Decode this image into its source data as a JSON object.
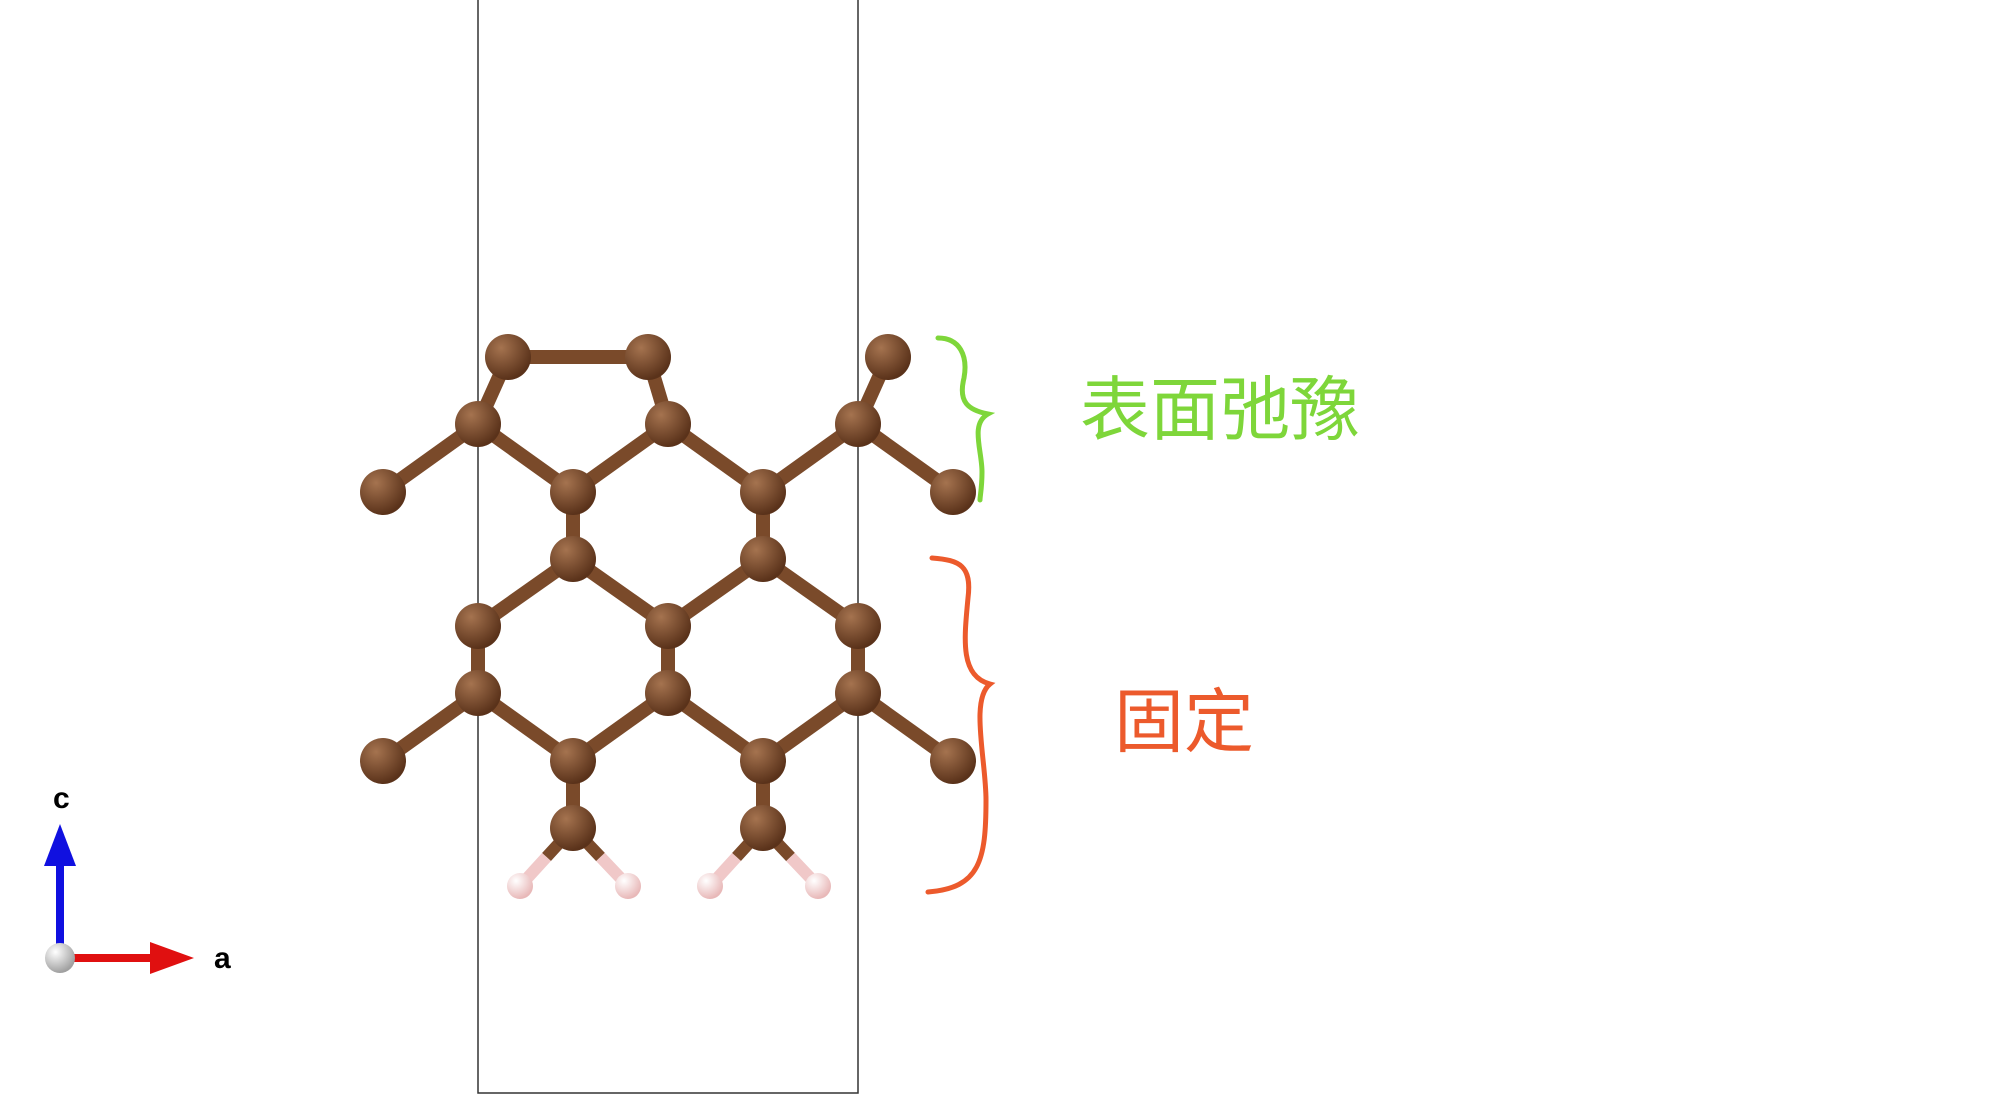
{
  "structure": {
    "atoms": [
      {
        "id": "c1",
        "element": "C"
      },
      {
        "id": "c2",
        "element": "C"
      },
      {
        "id": "c3",
        "element": "C"
      },
      {
        "id": "c4",
        "element": "C"
      },
      {
        "id": "c5",
        "element": "C"
      },
      {
        "id": "c6",
        "element": "C"
      },
      {
        "id": "c7",
        "element": "C"
      },
      {
        "id": "c8",
        "element": "C"
      },
      {
        "id": "c9",
        "element": "C"
      },
      {
        "id": "c10",
        "element": "C"
      },
      {
        "id": "c11",
        "element": "C"
      },
      {
        "id": "c12",
        "element": "C"
      },
      {
        "id": "c13",
        "element": "C"
      },
      {
        "id": "c14",
        "element": "C"
      },
      {
        "id": "c15",
        "element": "C"
      },
      {
        "id": "c16",
        "element": "C"
      },
      {
        "id": "c17",
        "element": "C"
      },
      {
        "id": "c18",
        "element": "C"
      },
      {
        "id": "c19",
        "element": "C"
      },
      {
        "id": "c20",
        "element": "C"
      },
      {
        "id": "c21",
        "element": "C"
      },
      {
        "id": "c22",
        "element": "C"
      },
      {
        "id": "c23",
        "element": "C"
      },
      {
        "id": "h1",
        "element": "H"
      },
      {
        "id": "h2",
        "element": "H"
      },
      {
        "id": "h3",
        "element": "H"
      },
      {
        "id": "h4",
        "element": "H"
      }
    ],
    "bonds": [
      [
        "c1",
        "c2"
      ],
      [
        "c1",
        "c3"
      ],
      [
        "c2",
        "c4"
      ],
      [
        "c5",
        "c6"
      ],
      [
        "c3",
        "c7"
      ],
      [
        "c3",
        "c8"
      ],
      [
        "c4",
        "c8"
      ],
      [
        "c4",
        "c9"
      ],
      [
        "c6",
        "c9"
      ],
      [
        "c6",
        "c10"
      ],
      [
        "c8",
        "c11"
      ],
      [
        "c9",
        "c12"
      ],
      [
        "c11",
        "c13"
      ],
      [
        "c11",
        "c14"
      ],
      [
        "c12",
        "c14"
      ],
      [
        "c12",
        "c15"
      ],
      [
        "c13",
        "c16"
      ],
      [
        "c14",
        "c17"
      ],
      [
        "c15",
        "c18"
      ],
      [
        "c16",
        "c19"
      ],
      [
        "c16",
        "c20"
      ],
      [
        "c17",
        "c20"
      ],
      [
        "c17",
        "c21"
      ],
      [
        "c18",
        "c21"
      ],
      [
        "c18",
        "c22"
      ],
      [
        "c20",
        "c23a"
      ],
      [
        "c21",
        "c23b"
      ],
      [
        "c23a",
        "h1"
      ],
      [
        "c23a",
        "h2"
      ],
      [
        "c23b",
        "h3"
      ],
      [
        "c23b",
        "h4"
      ]
    ],
    "extra_atoms": [
      {
        "id": "c23a",
        "element": "C"
      },
      {
        "id": "c23b",
        "element": "C"
      }
    ]
  },
  "colors": {
    "carbon": "#6b3f22",
    "carbon_highlight": "#a5734f",
    "bond": "#7a4a2a",
    "hydrogen": "#f0c8c8",
    "hydrogen_highlight": "#ffffff",
    "cell_line": "#333333",
    "axis_a": "#e01010",
    "axis_c": "#1010e0",
    "origin": "#d0d0d0",
    "relax_annotation": "#7ed63a",
    "fixed_annotation": "#ec5a2c"
  },
  "axes": {
    "a_label": "a",
    "c_label": "c"
  },
  "annotations": {
    "relaxed_label": "表面弛豫",
    "fixed_label": "固定"
  }
}
